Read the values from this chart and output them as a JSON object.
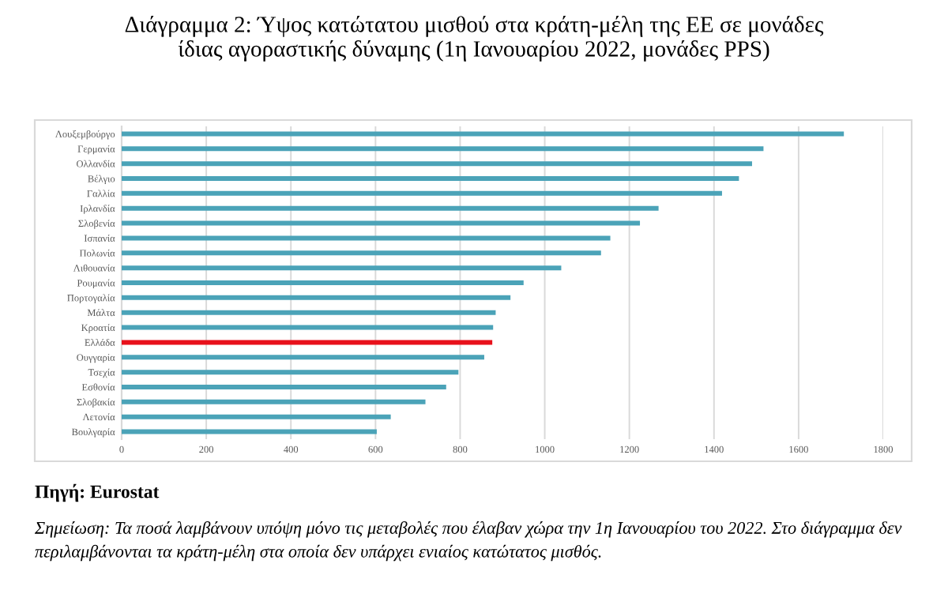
{
  "chart_data": {
    "type": "bar",
    "orientation": "horizontal",
    "title": "Διάγραμμα 2: Ύψος κατώτατου μισθού στα κράτη-μέλη της ΕΕ σε μονάδες ίδιας αγοραστικής δύναμης (1η Ιανουαρίου 2022, μονάδες PPS)",
    "categories": [
      "Λουξεμβούργο",
      "Γερμανία",
      "Ολλανδία",
      "Βέλγιο",
      "Γαλλία",
      "Ιρλανδία",
      "Σλοβενία",
      "Ισπανία",
      "Πολωνία",
      "Λιθουανία",
      "Ρουμανία",
      "Πορτογαλία",
      "Μάλτα",
      "Κροατία",
      "Ελλάδα",
      "Ουγγαρία",
      "Τσεχία",
      "Εσθονία",
      "Σλοβακία",
      "Λετονία",
      "Βουλγαρία"
    ],
    "values": [
      1707,
      1517,
      1490,
      1459,
      1419,
      1269,
      1225,
      1155,
      1133,
      1039,
      950,
      919,
      884,
      878,
      876,
      857,
      796,
      767,
      718,
      636,
      603
    ],
    "colors": [
      "#4ba3b8",
      "#4ba3b8",
      "#4ba3b8",
      "#4ba3b8",
      "#4ba3b8",
      "#4ba3b8",
      "#4ba3b8",
      "#4ba3b8",
      "#4ba3b8",
      "#4ba3b8",
      "#4ba3b8",
      "#4ba3b8",
      "#4ba3b8",
      "#4ba3b8",
      "#e8111b",
      "#4ba3b8",
      "#4ba3b8",
      "#4ba3b8",
      "#4ba3b8",
      "#4ba3b8",
      "#4ba3b8"
    ],
    "xlim": [
      0,
      1800
    ],
    "xticks": [
      0,
      200,
      400,
      600,
      800,
      1000,
      1200,
      1400,
      1600,
      1800
    ],
    "grid": "x",
    "legend": false,
    "annotations": [
      "Πηγή: Eurostat",
      "Σημείωση: Τα ποσά λαμβάνουν υπόψη μόνο τις μεταβολές που έλαβαν χώρα την 1η Ιανουαρίου του 2022. Στο διάγραμμα δεν περιλαμβάνονται τα κράτη-μέλη στα οποία δεν υπάρχει ενιαίος κατώτατος μισθός."
    ]
  }
}
